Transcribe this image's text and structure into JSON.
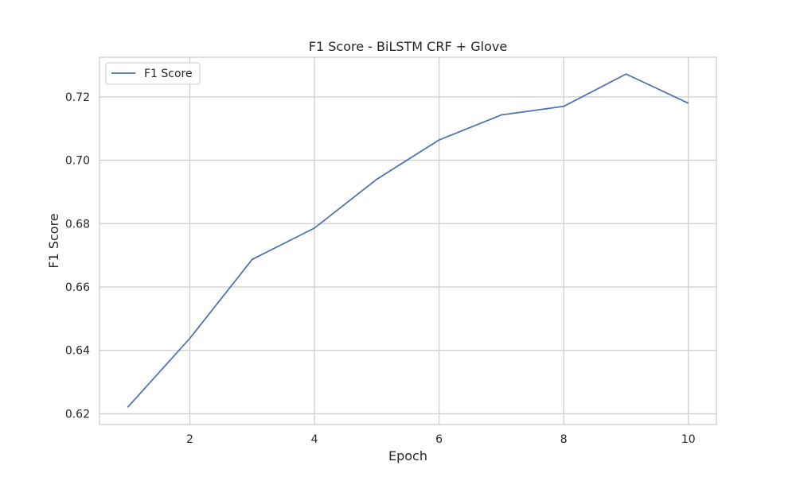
{
  "chart_data": {
    "type": "line",
    "title": "F1 Score - BiLSTM CRF + Glove",
    "xlabel": "Epoch",
    "ylabel": "F1 Score",
    "x": [
      1,
      2,
      3,
      4,
      5,
      6,
      7,
      8,
      9,
      10
    ],
    "series": [
      {
        "name": "F1 Score",
        "color": "#4c72b0",
        "values": [
          0.622,
          0.6438,
          0.6687,
          0.6786,
          0.694,
          0.7064,
          0.7143,
          0.717,
          0.7272,
          0.718
        ]
      }
    ],
    "xlim": [
      0.55,
      10.45
    ],
    "ylim": [
      0.6166,
      0.7325
    ],
    "xticks": [
      2,
      4,
      6,
      8,
      10
    ],
    "xtick_labels": [
      "2",
      "4",
      "6",
      "8",
      "10"
    ],
    "yticks": [
      0.62,
      0.64,
      0.66,
      0.68,
      0.7,
      0.72
    ],
    "ytick_labels": [
      "0.62",
      "0.64",
      "0.66",
      "0.68",
      "0.70",
      "0.72"
    ],
    "grid": true,
    "legend_position": "top-left",
    "colors": {
      "grid": "#cccccc",
      "frame": "#cccccc",
      "background": "#ffffff"
    }
  }
}
